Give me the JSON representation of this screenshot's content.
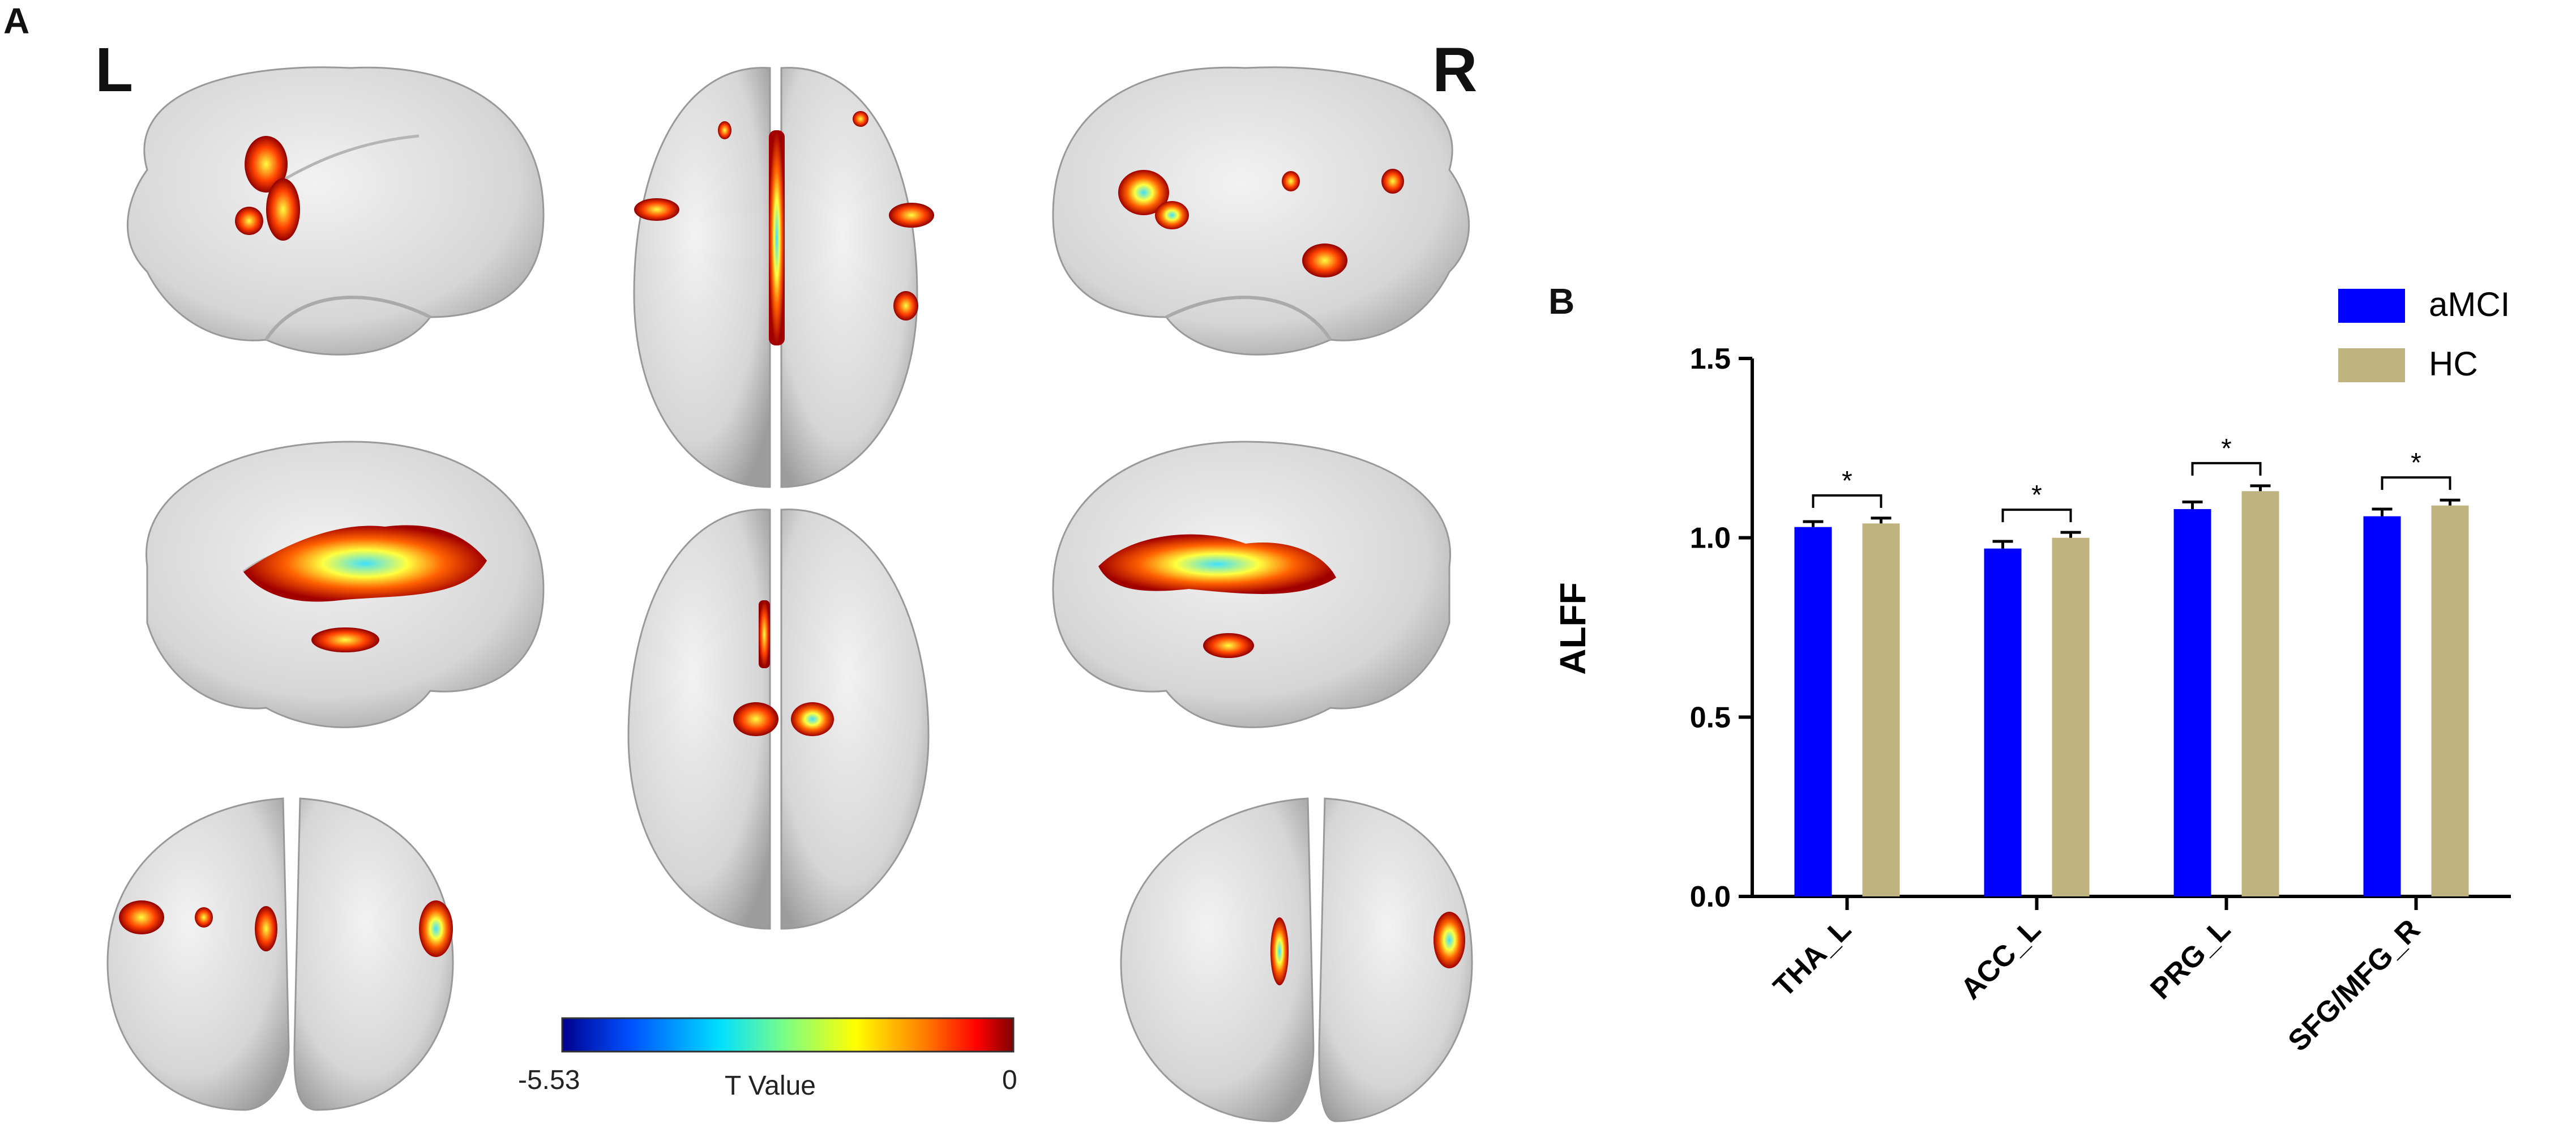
{
  "panels": {
    "a": "A",
    "b": "B"
  },
  "brain": {
    "left_label": "L",
    "right_label": "R",
    "colorbar": {
      "min_label": "-5.53",
      "max_label": "0",
      "title": "T Value",
      "stops": [
        "#00008f",
        "#0050ff",
        "#00e0ff",
        "#80ff80",
        "#ffff00",
        "#ff8000",
        "#ff0000",
        "#800000"
      ]
    }
  },
  "colors": {
    "aMCI": "#0000ff",
    "HC": "#bfb380",
    "brain": "#d9d9d9"
  },
  "chart_data": {
    "type": "bar",
    "categories": [
      "THA_L",
      "ACC_L",
      "PRG_L",
      "SFG/MFG_R"
    ],
    "series": [
      {
        "name": "aMCI",
        "values": [
          1.03,
          0.97,
          1.08,
          1.06
        ],
        "errors": [
          0.015,
          0.02,
          0.02,
          0.02
        ]
      },
      {
        "name": "HC",
        "values": [
          1.04,
          1.0,
          1.13,
          1.09
        ],
        "errors": [
          0.015,
          0.015,
          0.015,
          0.015
        ]
      }
    ],
    "significance": [
      "*",
      "*",
      "*",
      "*"
    ],
    "ylabel": "ALFF",
    "ylim": [
      0,
      1.5
    ],
    "yticks": [
      "0.0",
      "0.5",
      "1.0",
      "1.5"
    ],
    "legend_position": "top-right",
    "grid": false
  }
}
